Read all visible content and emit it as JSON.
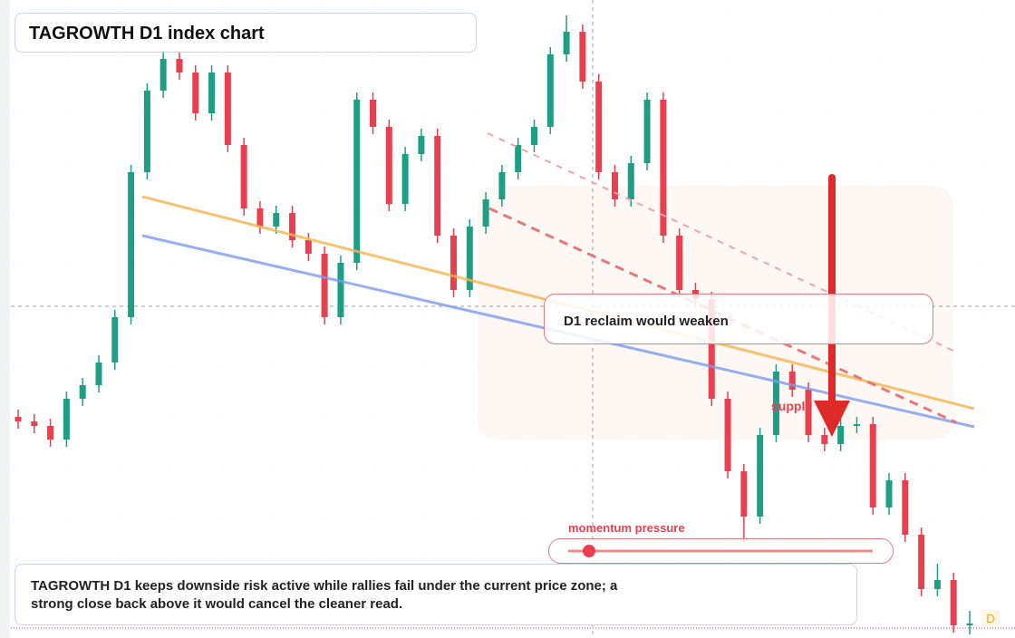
{
  "chart_data": {
    "type": "candlestick",
    "title": "TAGROWTH D1 index chart",
    "annotations": {
      "zone_label": "D1 reclaim would weaken",
      "supply_label": "supply",
      "momentum_label": "momentum pressure",
      "note": "TAGROWTH D1 keeps downside risk active while rallies fail under the current price zone; a strong close back above it would cancel the cleaner read.",
      "corner_marker": "D"
    },
    "up_color": "#1f9e86",
    "down_color": "#e8404f",
    "ylim": [
      0,
      704
    ],
    "ohlc": [
      [
        244,
        252,
        231,
        239
      ],
      [
        239,
        247,
        226,
        234
      ],
      [
        234,
        242,
        211,
        219
      ],
      [
        219,
        272,
        211,
        264
      ],
      [
        264,
        287,
        256,
        279
      ],
      [
        279,
        312,
        271,
        304
      ],
      [
        304,
        362,
        296,
        354
      ],
      [
        354,
        522,
        346,
        514
      ],
      [
        514,
        612,
        506,
        604
      ],
      [
        604,
        647,
        596,
        639
      ],
      [
        639,
        647,
        616,
        624
      ],
      [
        624,
        632,
        571,
        579
      ],
      [
        579,
        632,
        571,
        624
      ],
      [
        624,
        632,
        536,
        544
      ],
      [
        544,
        552,
        466,
        474
      ],
      [
        474,
        482,
        446,
        454
      ],
      [
        454,
        477,
        446,
        469
      ],
      [
        469,
        477,
        431,
        439
      ],
      [
        439,
        447,
        416,
        424
      ],
      [
        424,
        432,
        346,
        354
      ],
      [
        354,
        422,
        346,
        414
      ],
      [
        414,
        602,
        406,
        594
      ],
      [
        594,
        602,
        556,
        564
      ],
      [
        564,
        572,
        471,
        479
      ],
      [
        479,
        542,
        471,
        534
      ],
      [
        534,
        562,
        526,
        554
      ],
      [
        554,
        562,
        436,
        444
      ],
      [
        444,
        452,
        376,
        384
      ],
      [
        384,
        462,
        376,
        454
      ],
      [
        454,
        492,
        446,
        484
      ],
      [
        484,
        522,
        476,
        514
      ],
      [
        514,
        552,
        506,
        544
      ],
      [
        544,
        572,
        536,
        564
      ],
      [
        564,
        652,
        556,
        644
      ],
      [
        644,
        687,
        636,
        669
      ],
      [
        669,
        677,
        606,
        614
      ],
      [
        614,
        622,
        506,
        514
      ],
      [
        514,
        522,
        476,
        484
      ],
      [
        484,
        532,
        476,
        524
      ],
      [
        524,
        602,
        516,
        594
      ],
      [
        594,
        602,
        436,
        444
      ],
      [
        444,
        452,
        376,
        384
      ],
      [
        384,
        392,
        366,
        374
      ],
      [
        374,
        382,
        256,
        264
      ],
      [
        264,
        272,
        176,
        184
      ],
      [
        184,
        192,
        106,
        134
      ],
      [
        134,
        232,
        126,
        224
      ],
      [
        224,
        302,
        216,
        294
      ],
      [
        294,
        302,
        266,
        274
      ],
      [
        274,
        282,
        216,
        224
      ],
      [
        224,
        232,
        206,
        214
      ],
      [
        214,
        242,
        206,
        234
      ],
      [
        234,
        244,
        226,
        236
      ],
      [
        236,
        244,
        136,
        144
      ],
      [
        144,
        182,
        136,
        174
      ],
      [
        174,
        182,
        106,
        114
      ],
      [
        114,
        122,
        46,
        54
      ],
      [
        54,
        82,
        46,
        64
      ],
      [
        64,
        72,
        6,
        14
      ],
      [
        14,
        30,
        4,
        16
      ]
    ]
  }
}
